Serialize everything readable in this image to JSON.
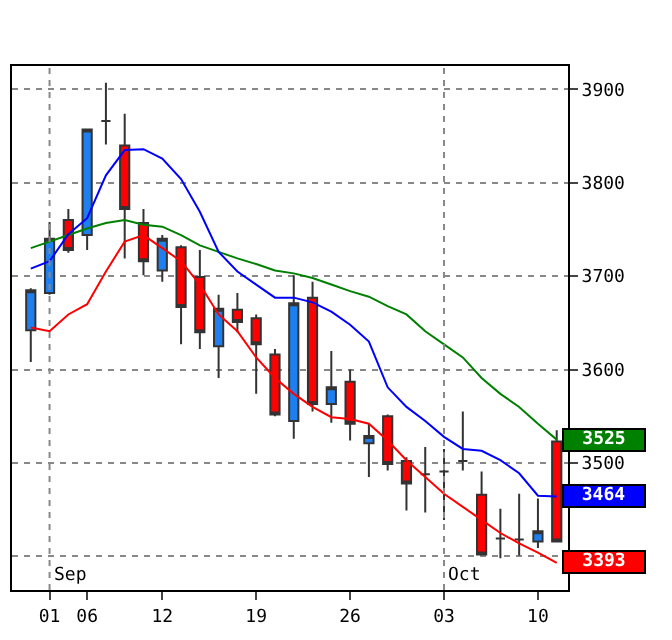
{
  "chart_data": {
    "type": "candlestick",
    "categories": [
      null,
      "01",
      null,
      "06",
      null,
      null,
      null,
      "12",
      null,
      null,
      null,
      null,
      "19",
      null,
      null,
      null,
      null,
      "26",
      null,
      null,
      null,
      null,
      "03",
      null,
      null,
      null,
      null,
      "10",
      null
    ],
    "ohlc": [
      [
        3642,
        3687,
        3608,
        3685
      ],
      [
        3682,
        3758,
        3680,
        3740
      ],
      [
        3760,
        3772,
        3725,
        3728
      ],
      [
        3744,
        3857,
        3728,
        3857
      ],
      [
        3866,
        3907,
        3841,
        3866
      ],
      [
        3840,
        3874,
        3719,
        3772
      ],
      [
        3757,
        3772,
        3701,
        3716
      ],
      [
        3706,
        3744,
        3694,
        3740
      ],
      [
        3731,
        3733,
        3627,
        3667
      ],
      [
        3699,
        3728,
        3622,
        3640
      ],
      [
        3625,
        3680,
        3591,
        3665
      ],
      [
        3664,
        3682,
        3640,
        3651
      ],
      [
        3655,
        3659,
        3574,
        3627
      ],
      [
        3616,
        3622,
        3550,
        3552
      ],
      [
        3545,
        3701,
        3526,
        3671
      ],
      [
        3677,
        3694,
        3555,
        3563
      ],
      [
        3563,
        3620,
        3543,
        3581
      ],
      [
        3587,
        3600,
        3524,
        3542
      ],
      [
        3521,
        3542,
        3485,
        3529
      ],
      [
        3550,
        3552,
        3492,
        3499
      ],
      [
        3502,
        3506,
        3449,
        3478
      ],
      [
        3488,
        3517,
        3447,
        3488
      ],
      [
        3491,
        3515,
        3439,
        3491
      ],
      [
        3502,
        3555,
        3492,
        3502
      ],
      [
        3466,
        3491,
        3402,
        3402
      ],
      [
        3419,
        3451,
        3398,
        3419
      ],
      [
        3418,
        3467,
        3401,
        3418
      ],
      [
        3416,
        3462,
        3409,
        3427
      ],
      [
        3523,
        3535,
        3416,
        3416
      ]
    ],
    "colors": [
      "#1e80f0",
      "#1e80f0",
      "#ff0000",
      "#1e80f0",
      "#333333",
      "#ff0000",
      "#ff0000",
      "#1e80f0",
      "#ff0000",
      "#ff0000",
      "#1e80f0",
      "#ff0000",
      "#ff0000",
      "#ff0000",
      "#1e80f0",
      "#ff0000",
      "#1e80f0",
      "#ff0000",
      "#1e80f0",
      "#ff0000",
      "#ff0000",
      "#333333",
      "#333333",
      "#333333",
      "#ff0000",
      "#333333",
      "#333333",
      "#1e80f0",
      "#ff0000"
    ],
    "series": [
      {
        "type": "line",
        "color": "#008000",
        "values": [
          3730,
          3737,
          3744,
          3751,
          3757,
          3760,
          3755,
          3753,
          3744,
          3733,
          3726,
          3719,
          3713,
          3706,
          3703,
          3698,
          3691,
          3684,
          3678,
          3668,
          3659,
          3641,
          3627,
          3613,
          3591,
          3574,
          3560,
          3542,
          3525
        ],
        "value_labels": [
          null,
          null,
          null,
          null,
          null,
          null,
          null,
          null,
          null,
          null,
          null,
          null,
          null,
          null,
          null,
          null,
          null,
          null,
          null,
          null,
          null,
          null,
          null,
          null,
          null,
          null,
          null,
          null,
          "3525"
        ]
      },
      {
        "type": "line",
        "color": "#0000ff",
        "values": [
          3708,
          3716,
          3745,
          3762,
          3808,
          3835,
          3836,
          3826,
          3804,
          3769,
          3726,
          3705,
          3691,
          3677,
          3677,
          3672,
          3662,
          3648,
          3630,
          3581,
          3560,
          3545,
          3528,
          3515,
          3513,
          3503,
          3489,
          3465,
          3464
        ],
        "value_labels": [
          null,
          null,
          null,
          null,
          null,
          null,
          null,
          null,
          null,
          null,
          null,
          null,
          null,
          null,
          null,
          null,
          null,
          null,
          null,
          null,
          null,
          null,
          null,
          null,
          null,
          null,
          null,
          null,
          "3464"
        ]
      },
      {
        "type": "line",
        "color": "#ff0000",
        "values": [
          3645,
          3641,
          3659,
          3670,
          3705,
          3737,
          3744,
          3730,
          3716,
          3691,
          3659,
          3641,
          3613,
          3591,
          3574,
          3560,
          3549,
          3547,
          3542,
          3524,
          3503,
          3485,
          3467,
          3453,
          3439,
          3425,
          3414,
          3404,
          3393
        ],
        "value_labels": [
          null,
          null,
          null,
          null,
          null,
          null,
          null,
          null,
          null,
          null,
          null,
          null,
          null,
          null,
          null,
          null,
          null,
          null,
          null,
          null,
          null,
          null,
          null,
          null,
          null,
          null,
          null,
          null,
          "3393"
        ]
      }
    ],
    "ylim": [
      3364,
      3925
    ],
    "yticks": [
      3900,
      3800,
      3700,
      3600,
      3500,
      {
        "value": 3400,
        "label": null
      }
    ],
    "grid": "y",
    "ref_lines": [
      {
        "axis": "x",
        "value": "01",
        "label": "Sep",
        "line_style": "dotted"
      },
      {
        "axis": "x",
        "value": "03",
        "label": "Oct",
        "line_style": "dotted"
      }
    ]
  }
}
